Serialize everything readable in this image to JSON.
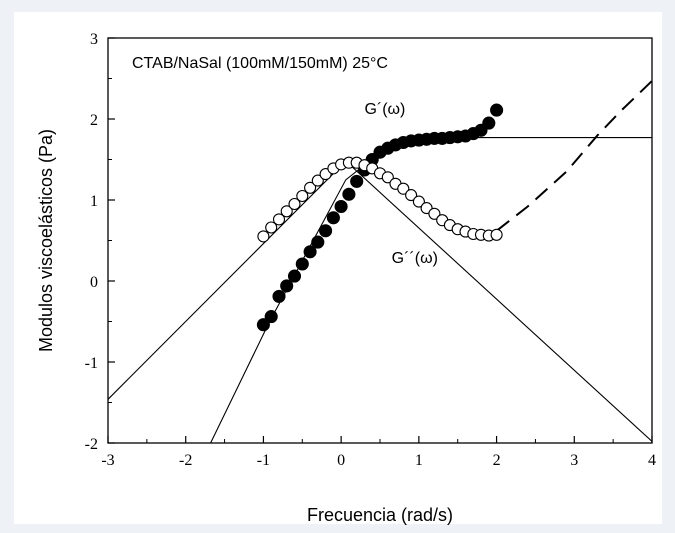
{
  "chart_data": {
    "type": "scatter",
    "title": "",
    "annotation": "CTAB/NaSal (100mM/150mM) 25°C",
    "xlabel": "Frecuencia (rad/s)",
    "ylabel": "Modulos viscoelásticos (Pa)",
    "xlim": [
      -3,
      4
    ],
    "ylim": [
      -2,
      3
    ],
    "xticks": [
      "-3",
      "-2",
      "-1",
      "0",
      "1",
      "2",
      "3",
      "4"
    ],
    "yticks": [
      "-2",
      "-1",
      "0",
      "1",
      "2",
      "3"
    ],
    "grid": false,
    "series": [
      {
        "name": "G´(ω)",
        "marker": "filled-circle",
        "x": [
          -1.0,
          -0.9,
          -0.8,
          -0.7,
          -0.6,
          -0.5,
          -0.4,
          -0.3,
          -0.2,
          -0.1,
          0.0,
          0.1,
          0.2,
          0.3,
          0.4,
          0.5,
          0.6,
          0.7,
          0.8,
          0.9,
          1.0,
          1.1,
          1.2,
          1.3,
          1.4,
          1.5,
          1.6,
          1.7,
          1.8,
          1.9,
          2.0
        ],
        "y": [
          -0.54,
          -0.44,
          -0.19,
          -0.06,
          0.06,
          0.21,
          0.36,
          0.48,
          0.62,
          0.78,
          0.92,
          1.07,
          1.23,
          1.37,
          1.5,
          1.59,
          1.64,
          1.68,
          1.71,
          1.73,
          1.74,
          1.75,
          1.76,
          1.76,
          1.77,
          1.78,
          1.79,
          1.82,
          1.86,
          1.95,
          2.11
        ]
      },
      {
        "name": "G´´(ω)",
        "marker": "open-circle",
        "x": [
          -1.0,
          -0.9,
          -0.8,
          -0.7,
          -0.6,
          -0.5,
          -0.4,
          -0.3,
          -0.2,
          -0.1,
          0.0,
          0.1,
          0.2,
          0.3,
          0.4,
          0.5,
          0.6,
          0.7,
          0.8,
          0.9,
          1.0,
          1.1,
          1.2,
          1.3,
          1.4,
          1.5,
          1.6,
          1.7,
          1.8,
          1.9,
          2.0
        ],
        "y": [
          0.55,
          0.66,
          0.76,
          0.86,
          0.95,
          1.05,
          1.15,
          1.24,
          1.32,
          1.39,
          1.44,
          1.46,
          1.46,
          1.43,
          1.39,
          1.33,
          1.28,
          1.2,
          1.14,
          1.06,
          0.98,
          0.9,
          0.83,
          0.75,
          0.69,
          0.64,
          0.61,
          0.58,
          0.57,
          0.56,
          0.57
        ]
      }
    ],
    "reference_lines": [
      {
        "style": "solid",
        "x": [
          -3.0,
          0.06,
          4.0
        ],
        "y": [
          -1.46,
          1.48,
          -1.98
        ]
      },
      {
        "style": "solid",
        "x": [
          -1.68,
          -0.92,
          0.06,
          0.6,
          1.5,
          4.0
        ],
        "y": [
          -2.0,
          -0.5,
          1.25,
          1.66,
          1.77,
          1.77
        ]
      },
      {
        "style": "dashed",
        "x": [
          2.0,
          2.4,
          2.9,
          3.3,
          3.6,
          4.0
        ],
        "y": [
          0.62,
          0.92,
          1.35,
          1.8,
          2.1,
          2.47
        ]
      }
    ],
    "labels": [
      {
        "text": "G´(ω)",
        "x": 0.3,
        "y": 2.06
      },
      {
        "text": "G´´(ω)",
        "x": 0.65,
        "y": 0.22
      }
    ]
  }
}
